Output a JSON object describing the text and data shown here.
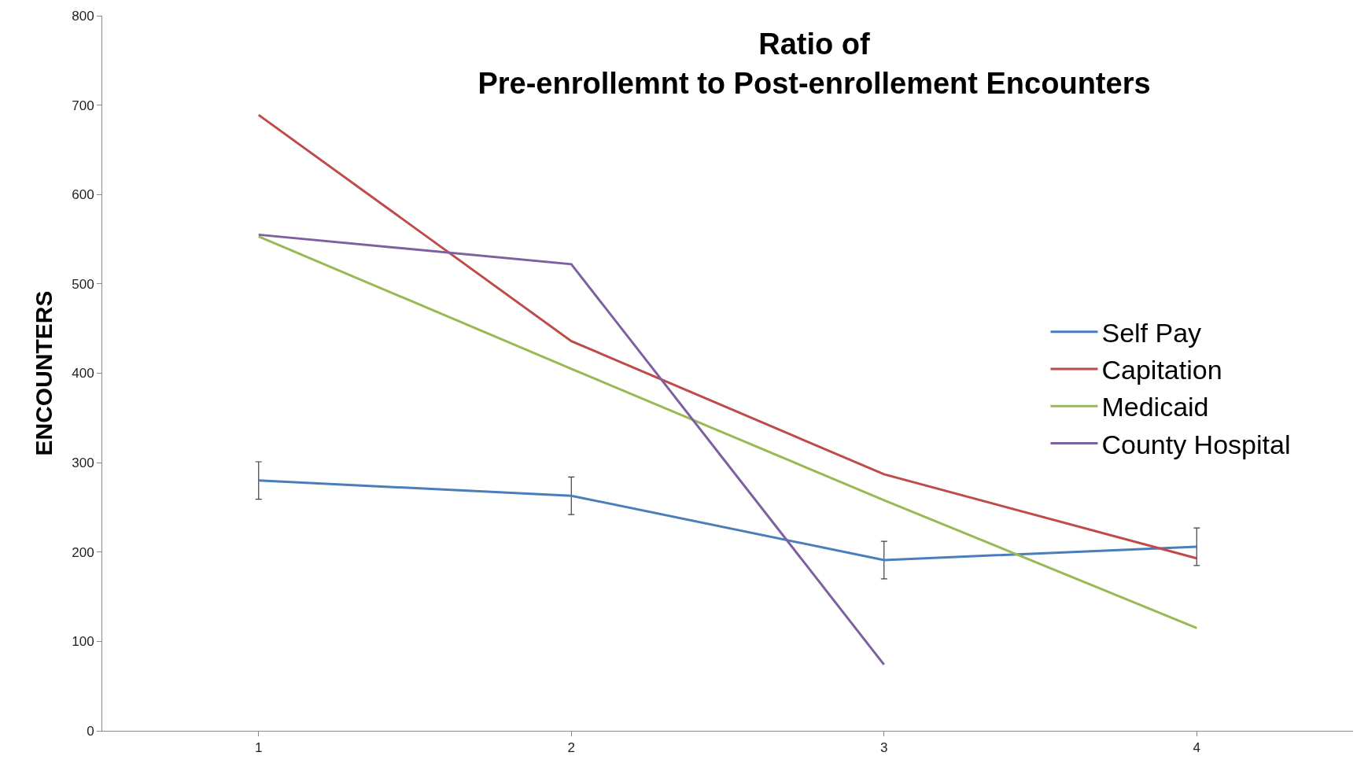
{
  "chart_data": {
    "type": "line",
    "title": "Ratio of\nPre-enrollemnt to Post-enrollement Encounters",
    "ylabel": "ENCOUNTERS",
    "categories": [
      "1",
      "2",
      "3",
      "4"
    ],
    "series": [
      {
        "name": "Self Pay",
        "color": "#4a7ebb",
        "values": [
          280,
          263,
          191,
          206
        ],
        "errors": [
          21,
          21,
          21,
          21
        ]
      },
      {
        "name": "Capitation",
        "color": "#be4b48",
        "values": [
          689,
          436,
          287,
          193
        ]
      },
      {
        "name": "Medicaid",
        "color": "#98b954",
        "values": [
          553,
          405,
          258,
          115
        ]
      },
      {
        "name": "County Hospital",
        "color": "#7d60a0",
        "values": [
          555,
          522,
          74,
          null
        ]
      }
    ],
    "ylim": [
      0,
      800
    ],
    "yticks": [
      0,
      100,
      200,
      300,
      400,
      500,
      600,
      700,
      800
    ],
    "legend": "right",
    "marker": "none",
    "line_style": "solid"
  }
}
